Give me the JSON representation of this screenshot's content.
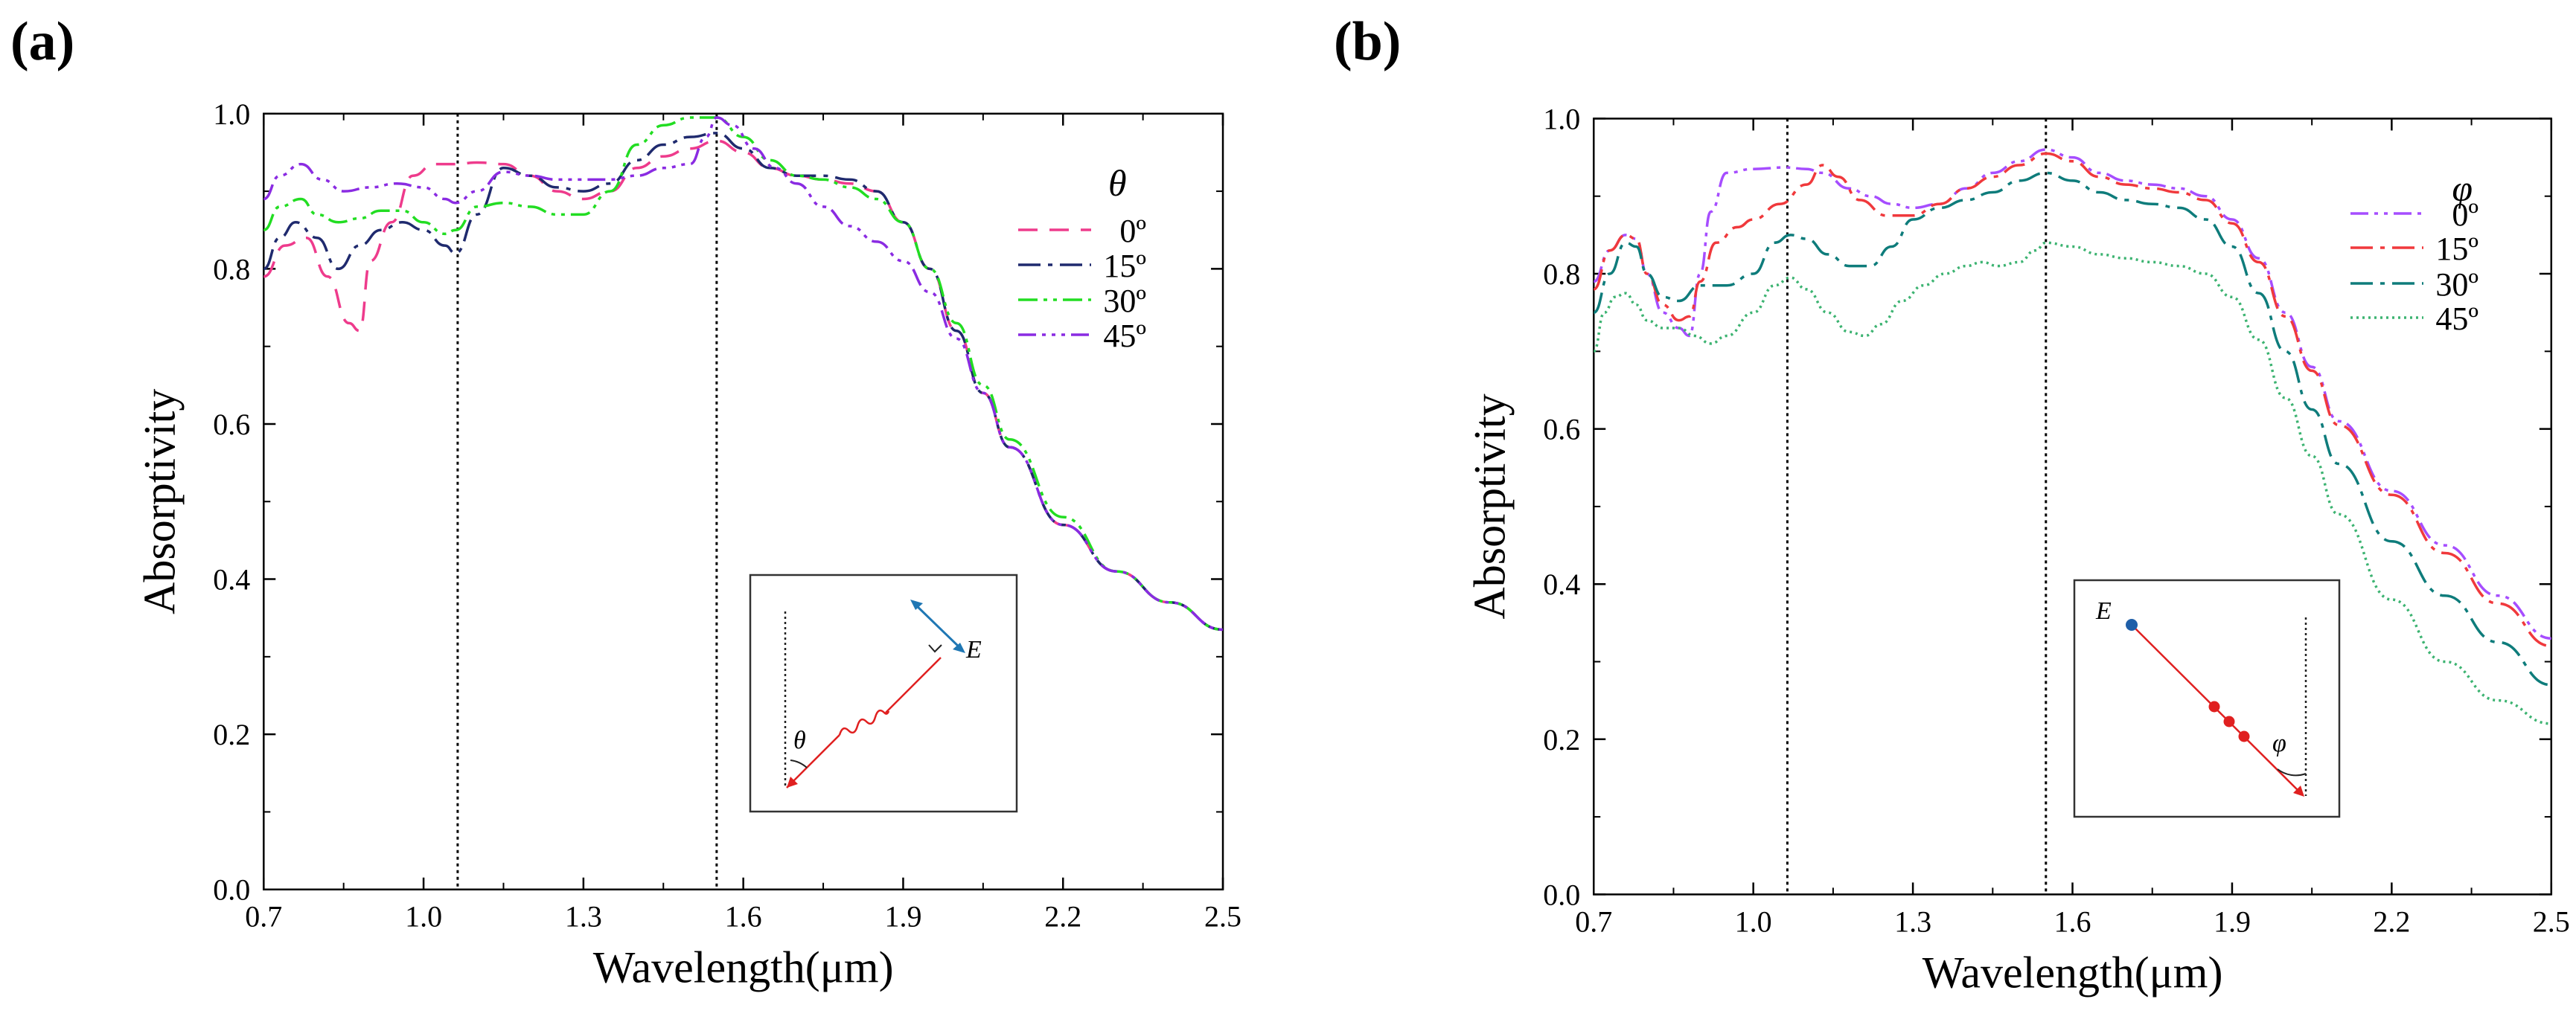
{
  "chart_data": [
    {
      "panel": "(a)",
      "type": "line",
      "xlabel": "Wavelength(μm)",
      "ylabel": "Absorptivity",
      "xlim": [
        0.7,
        2.5
      ],
      "ylim": [
        0.0,
        1.0
      ],
      "xticks": [
        "0.7",
        "1.0",
        "1.3",
        "1.6",
        "1.9",
        "2.2",
        "2.5"
      ],
      "yticks": [
        "0.0",
        "0.2",
        "0.4",
        "0.6",
        "0.8",
        "1.0"
      ],
      "xtick_values": [
        0.7,
        1.0,
        1.3,
        1.6,
        1.9,
        2.2,
        2.5
      ],
      "ytick_values": [
        0.0,
        0.2,
        0.4,
        0.6,
        0.8,
        1.0
      ],
      "reference_lines_x": [
        1.064,
        1.55
      ],
      "legend_title": "θ",
      "legend_position": "top-right",
      "inset_label_angle": "θ",
      "inset_label_field": "E",
      "series": [
        {
          "name": "0º",
          "color": "#ee3b8c",
          "dash": "26,16",
          "x": [
            0.7,
            0.74,
            0.78,
            0.82,
            0.86,
            0.88,
            0.9,
            0.94,
            0.98,
            1.02,
            1.06,
            1.1,
            1.15,
            1.2,
            1.25,
            1.3,
            1.35,
            1.4,
            1.45,
            1.5,
            1.55,
            1.6,
            1.65,
            1.7,
            1.75,
            1.8,
            1.85,
            1.9,
            1.95,
            2.0,
            2.05,
            2.1,
            2.2,
            2.3,
            2.4,
            2.5
          ],
          "y": [
            0.79,
            0.83,
            0.84,
            0.79,
            0.73,
            0.72,
            0.81,
            0.86,
            0.92,
            0.935,
            0.935,
            0.937,
            0.935,
            0.92,
            0.9,
            0.89,
            0.9,
            0.93,
            0.945,
            0.955,
            0.965,
            0.95,
            0.93,
            0.92,
            0.915,
            0.91,
            0.9,
            0.86,
            0.8,
            0.72,
            0.64,
            0.57,
            0.47,
            0.41,
            0.37,
            0.335
          ]
        },
        {
          "name": "15º",
          "color": "#1f2a6e",
          "dash": "30,10,6,10",
          "x": [
            0.7,
            0.73,
            0.76,
            0.8,
            0.84,
            0.88,
            0.92,
            0.96,
            1.0,
            1.04,
            1.06,
            1.1,
            1.15,
            1.2,
            1.25,
            1.3,
            1.35,
            1.4,
            1.45,
            1.5,
            1.55,
            1.6,
            1.65,
            1.7,
            1.75,
            1.8,
            1.85,
            1.9,
            1.95,
            2.0,
            2.05,
            2.1,
            2.2,
            2.3,
            2.4,
            2.5
          ],
          "y": [
            0.8,
            0.84,
            0.86,
            0.84,
            0.8,
            0.83,
            0.85,
            0.86,
            0.85,
            0.83,
            0.82,
            0.87,
            0.93,
            0.92,
            0.905,
            0.9,
            0.91,
            0.94,
            0.96,
            0.97,
            0.975,
            0.955,
            0.93,
            0.92,
            0.92,
            0.915,
            0.9,
            0.86,
            0.8,
            0.72,
            0.64,
            0.57,
            0.47,
            0.41,
            0.37,
            0.335
          ]
        },
        {
          "name": "30º",
          "color": "#22dd22",
          "dash": "26,8,5,8,5,8",
          "x": [
            0.7,
            0.73,
            0.77,
            0.8,
            0.84,
            0.88,
            0.92,
            0.96,
            1.0,
            1.04,
            1.06,
            1.1,
            1.15,
            1.2,
            1.25,
            1.3,
            1.35,
            1.4,
            1.45,
            1.5,
            1.55,
            1.6,
            1.65,
            1.7,
            1.75,
            1.8,
            1.85,
            1.9,
            1.95,
            2.0,
            2.05,
            2.1,
            2.2,
            2.3,
            2.4,
            2.5
          ],
          "y": [
            0.85,
            0.88,
            0.89,
            0.87,
            0.86,
            0.865,
            0.875,
            0.875,
            0.86,
            0.845,
            0.85,
            0.88,
            0.885,
            0.88,
            0.87,
            0.87,
            0.9,
            0.96,
            0.985,
            0.995,
            0.995,
            0.97,
            0.94,
            0.92,
            0.915,
            0.905,
            0.89,
            0.86,
            0.8,
            0.73,
            0.65,
            0.58,
            0.48,
            0.41,
            0.37,
            0.335
          ]
        },
        {
          "name": "45º",
          "color": "#8a2be2",
          "dash": "24,8,5,8,5,8,5,8",
          "x": [
            0.7,
            0.73,
            0.77,
            0.81,
            0.85,
            0.9,
            0.95,
            1.0,
            1.04,
            1.06,
            1.1,
            1.15,
            1.2,
            1.25,
            1.3,
            1.35,
            1.4,
            1.45,
            1.5,
            1.53,
            1.55,
            1.58,
            1.62,
            1.66,
            1.7,
            1.75,
            1.8,
            1.85,
            1.9,
            1.95,
            2.0,
            2.05,
            2.1,
            2.2,
            2.3,
            2.4,
            2.5
          ],
          "y": [
            0.89,
            0.92,
            0.935,
            0.915,
            0.9,
            0.905,
            0.91,
            0.905,
            0.89,
            0.885,
            0.9,
            0.925,
            0.92,
            0.915,
            0.915,
            0.915,
            0.92,
            0.93,
            0.935,
            0.97,
            0.995,
            0.985,
            0.955,
            0.93,
            0.91,
            0.88,
            0.855,
            0.835,
            0.81,
            0.77,
            0.71,
            0.64,
            0.57,
            0.47,
            0.41,
            0.37,
            0.335
          ]
        }
      ]
    },
    {
      "panel": "(b)",
      "type": "line",
      "xlabel": "Wavelength(μm)",
      "ylabel": "Absorptivity",
      "xlim": [
        0.7,
        2.5
      ],
      "ylim": [
        0.0,
        1.0
      ],
      "xticks": [
        "0.7",
        "1.0",
        "1.3",
        "1.6",
        "1.9",
        "2.2",
        "2.5"
      ],
      "yticks": [
        "0.0",
        "0.2",
        "0.4",
        "0.6",
        "0.8",
        "1.0"
      ],
      "xtick_values": [
        0.7,
        1.0,
        1.3,
        1.6,
        1.9,
        2.2,
        2.5
      ],
      "ytick_values": [
        0.0,
        0.2,
        0.4,
        0.6,
        0.8,
        1.0
      ],
      "reference_lines_x": [
        1.064,
        1.55
      ],
      "legend_title": "φ",
      "legend_position": "top-right",
      "inset_label_angle": "φ",
      "inset_label_field": "E",
      "series": [
        {
          "name": "0º",
          "color": "#a64dff",
          "dash": "24,8,5,8,5,8",
          "x": [
            0.7,
            0.73,
            0.76,
            0.78,
            0.8,
            0.83,
            0.86,
            0.88,
            0.9,
            0.92,
            0.95,
            1.0,
            1.06,
            1.1,
            1.13,
            1.18,
            1.22,
            1.26,
            1.3,
            1.35,
            1.4,
            1.45,
            1.5,
            1.55,
            1.6,
            1.65,
            1.7,
            1.75,
            1.8,
            1.85,
            1.9,
            1.95,
            2.0,
            2.05,
            2.1,
            2.2,
            2.3,
            2.4,
            2.5
          ],
          "y": [
            0.79,
            0.83,
            0.85,
            0.845,
            0.8,
            0.75,
            0.73,
            0.72,
            0.8,
            0.88,
            0.93,
            0.935,
            0.937,
            0.935,
            0.93,
            0.91,
            0.9,
            0.89,
            0.885,
            0.89,
            0.91,
            0.93,
            0.945,
            0.96,
            0.95,
            0.93,
            0.92,
            0.915,
            0.91,
            0.9,
            0.87,
            0.82,
            0.75,
            0.68,
            0.61,
            0.52,
            0.45,
            0.385,
            0.33
          ]
        },
        {
          "name": "15º",
          "color": "#f0393c",
          "dash": "30,10,6,10",
          "x": [
            0.7,
            0.73,
            0.76,
            0.78,
            0.8,
            0.83,
            0.86,
            0.88,
            0.9,
            0.93,
            0.97,
            1.0,
            1.05,
            1.1,
            1.13,
            1.16,
            1.2,
            1.25,
            1.3,
            1.35,
            1.4,
            1.45,
            1.5,
            1.55,
            1.6,
            1.65,
            1.7,
            1.75,
            1.8,
            1.85,
            1.9,
            1.95,
            2.0,
            2.05,
            2.1,
            2.2,
            2.3,
            2.4,
            2.5
          ],
          "y": [
            0.78,
            0.83,
            0.85,
            0.845,
            0.8,
            0.76,
            0.74,
            0.745,
            0.79,
            0.84,
            0.86,
            0.87,
            0.89,
            0.915,
            0.94,
            0.925,
            0.895,
            0.875,
            0.875,
            0.89,
            0.91,
            0.925,
            0.94,
            0.955,
            0.945,
            0.925,
            0.915,
            0.91,
            0.905,
            0.895,
            0.865,
            0.815,
            0.745,
            0.675,
            0.605,
            0.515,
            0.44,
            0.375,
            0.32
          ]
        },
        {
          "name": "30º",
          "color": "#0e7c7b",
          "dash": "30,10,6,10",
          "x": [
            0.7,
            0.73,
            0.76,
            0.78,
            0.8,
            0.83,
            0.86,
            0.9,
            0.95,
            1.0,
            1.04,
            1.07,
            1.1,
            1.14,
            1.18,
            1.22,
            1.26,
            1.3,
            1.35,
            1.4,
            1.45,
            1.5,
            1.55,
            1.6,
            1.65,
            1.7,
            1.75,
            1.8,
            1.85,
            1.9,
            1.95,
            2.0,
            2.05,
            2.1,
            2.2,
            2.3,
            2.4,
            2.5
          ],
          "y": [
            0.75,
            0.8,
            0.84,
            0.835,
            0.8,
            0.77,
            0.765,
            0.785,
            0.785,
            0.8,
            0.84,
            0.85,
            0.845,
            0.825,
            0.81,
            0.81,
            0.835,
            0.87,
            0.885,
            0.895,
            0.905,
            0.92,
            0.93,
            0.92,
            0.905,
            0.895,
            0.89,
            0.885,
            0.87,
            0.835,
            0.775,
            0.7,
            0.625,
            0.555,
            0.455,
            0.385,
            0.325,
            0.27
          ]
        },
        {
          "name": "45º",
          "color": "#3cb371",
          "dash": "3,5",
          "x": [
            0.7,
            0.72,
            0.74,
            0.76,
            0.78,
            0.8,
            0.83,
            0.86,
            0.89,
            0.92,
            0.95,
            1.0,
            1.04,
            1.07,
            1.1,
            1.14,
            1.18,
            1.21,
            1.24,
            1.28,
            1.32,
            1.36,
            1.4,
            1.43,
            1.46,
            1.5,
            1.53,
            1.55,
            1.6,
            1.65,
            1.7,
            1.75,
            1.8,
            1.85,
            1.9,
            1.95,
            2.0,
            2.05,
            2.1,
            2.2,
            2.3,
            2.4,
            2.5
          ],
          "y": [
            0.7,
            0.75,
            0.77,
            0.775,
            0.76,
            0.74,
            0.73,
            0.73,
            0.72,
            0.71,
            0.72,
            0.75,
            0.785,
            0.795,
            0.78,
            0.75,
            0.725,
            0.72,
            0.735,
            0.765,
            0.785,
            0.8,
            0.81,
            0.815,
            0.81,
            0.815,
            0.83,
            0.84,
            0.835,
            0.825,
            0.82,
            0.815,
            0.81,
            0.8,
            0.77,
            0.715,
            0.64,
            0.565,
            0.49,
            0.38,
            0.3,
            0.25,
            0.22
          ]
        }
      ]
    }
  ]
}
